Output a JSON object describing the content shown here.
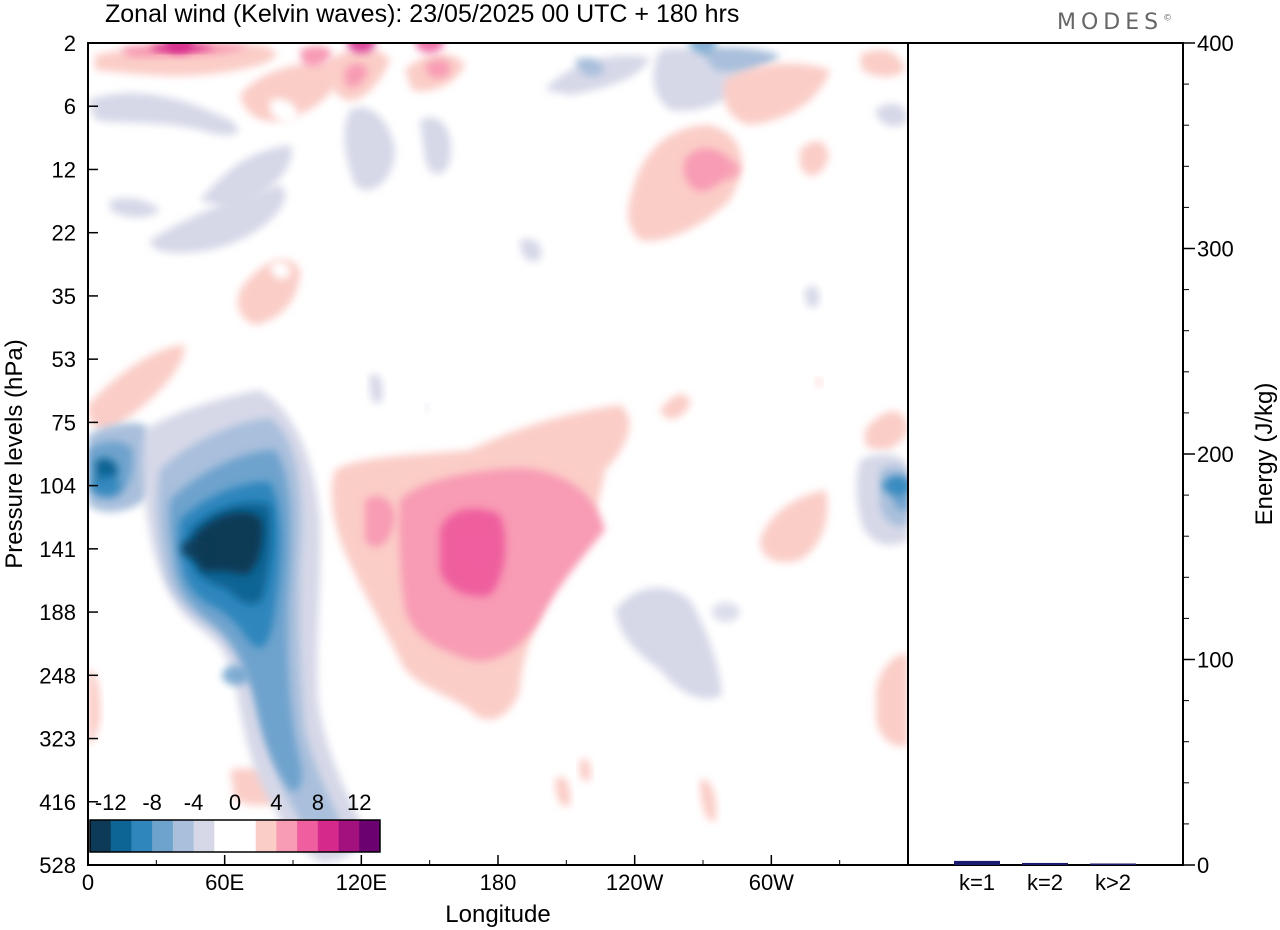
{
  "header": {
    "title": "Zonal wind (Kelvin waves):  23/05/2025  00 UTC  + 180 hrs",
    "brand": "MODES",
    "brand_mark": "©"
  },
  "chart_data": [
    {
      "type": "heatmap",
      "xlabel": "Longitude",
      "ylabel": "Pressure levels (hPa)",
      "x_ticks": [
        "0",
        "60E",
        "120E",
        "180",
        "120W",
        "60W"
      ],
      "x_tick_values_deg": [
        0,
        60,
        120,
        180,
        240,
        300
      ],
      "x_range_deg": [
        0,
        360
      ],
      "y_ticks": [
        "2",
        "6",
        "12",
        "22",
        "35",
        "53",
        "75",
        "104",
        "141",
        "188",
        "248",
        "323",
        "416",
        "528"
      ],
      "y_axis_order": "top-to-bottom",
      "colorbar": {
        "labels": [
          "-12",
          "-8",
          "-4",
          "0",
          "4",
          "8",
          "12"
        ],
        "levels": [
          -14,
          -12,
          -10,
          -8,
          -6,
          -4,
          -2,
          0,
          2,
          4,
          6,
          8,
          10,
          12,
          14
        ],
        "colors": [
          "#0c3a57",
          "#0d6595",
          "#2f86bd",
          "#6ea3cd",
          "#a9bfdc",
          "#d6d8e8",
          "#ffffff",
          "#ffffff",
          "#fbcdc7",
          "#f89bb4",
          "#ef5e9e",
          "#d52a8c",
          "#a3117f",
          "#6b0070"
        ],
        "placement": "lower-left"
      },
      "features": [
        {
          "lon": 47,
          "level": "141",
          "value": -13,
          "color": "#0c3a57"
        },
        {
          "lon": 8,
          "level": "104",
          "value": -9,
          "color": "#2f86bd"
        },
        {
          "lon": 65,
          "level": "248",
          "value": -7,
          "color": "#6ea3cd"
        },
        {
          "lon": 170,
          "level": "141",
          "value": 7,
          "color": "#ef5e9e"
        },
        {
          "lon": 280,
          "level": "12",
          "value": 5,
          "color": "#f89bb4"
        },
        {
          "lon": 270,
          "level": "2",
          "value": -6,
          "color": "#6ea3cd"
        },
        {
          "lon": 355,
          "level": "104",
          "value": -8,
          "color": "#2f86bd"
        },
        {
          "lon": 40,
          "level": "2",
          "value": 9,
          "color": "#d52a8c"
        },
        {
          "lon": 120,
          "level": "2",
          "value": 8,
          "color": "#d52a8c"
        },
        {
          "lon": 150,
          "level": "2",
          "value": 7,
          "color": "#ef5e9e"
        },
        {
          "lon": 280,
          "level": "188",
          "value": -3,
          "color": "#d6d8e8"
        }
      ]
    },
    {
      "type": "bar",
      "categories": [
        "k=1",
        "k=2",
        "k>2"
      ],
      "values": [
        2,
        1,
        0.6
      ],
      "ylabel": "Energy (J/kg)",
      "ylim": [
        0,
        400
      ],
      "y_ticks": [
        "0",
        "100",
        "200",
        "300",
        "400"
      ],
      "bar_color": "#1a1a6e"
    }
  ]
}
